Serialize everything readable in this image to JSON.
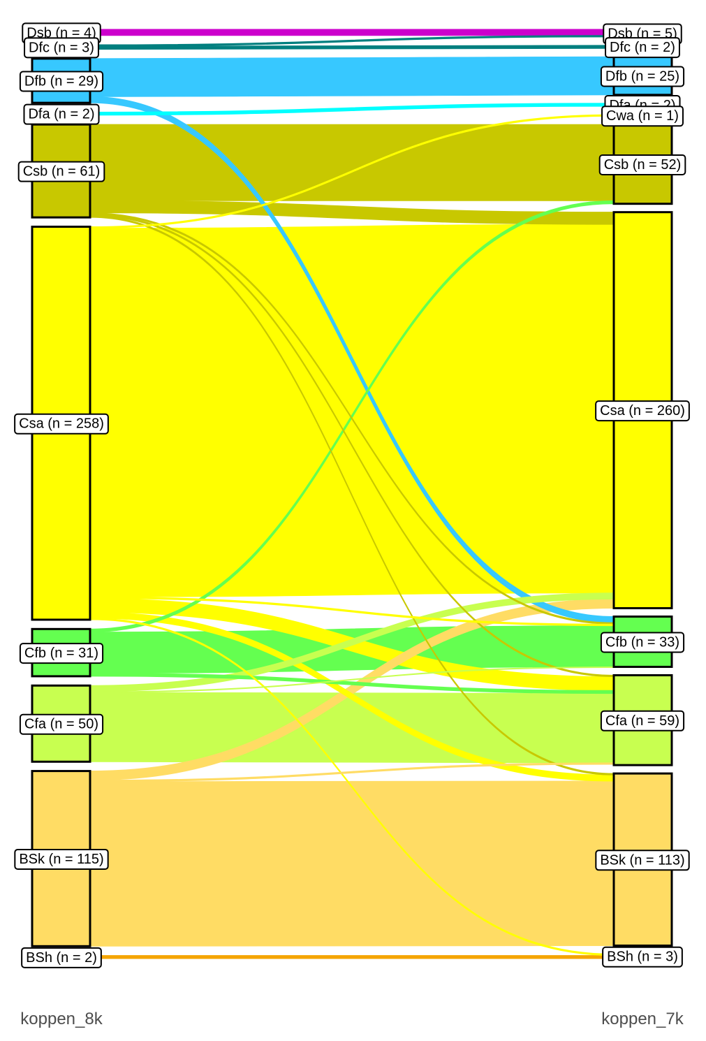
{
  "chart_data": {
    "type": "sankey",
    "axes": [
      {
        "name": "koppen_8k",
        "nodes": [
          {
            "id": "Dsb",
            "label": "Dsb (n = 4)",
            "n": 4,
            "color": "#cc00cc"
          },
          {
            "id": "Dfc",
            "label": "Dfc (n = 3)",
            "n": 3,
            "color": "#007f7f"
          },
          {
            "id": "Dfb",
            "label": "Dfb (n = 29)",
            "n": 29,
            "color": "#37c8ff"
          },
          {
            "id": "Dfa",
            "label": "Dfa (n = 2)",
            "n": 2,
            "color": "#00ffff"
          },
          {
            "id": "Csb",
            "label": "Csb (n = 61)",
            "n": 61,
            "color": "#c8c800"
          },
          {
            "id": "Csa",
            "label": "Csa (n = 258)",
            "n": 258,
            "color": "#ffff00"
          },
          {
            "id": "Cfb",
            "label": "Cfb (n = 31)",
            "n": 31,
            "color": "#64ff50"
          },
          {
            "id": "Cfa",
            "label": "Cfa (n = 50)",
            "n": 50,
            "color": "#c8ff50"
          },
          {
            "id": "BSk",
            "label": "BSk (n = 115)",
            "n": 115,
            "color": "#ffdc64"
          },
          {
            "id": "BSh",
            "label": "BSh (n = 2)",
            "n": 2,
            "color": "#f5a500"
          }
        ]
      },
      {
        "name": "koppen_7k",
        "nodes": [
          {
            "id": "Dsb",
            "label": "Dsb (n = 5)",
            "n": 5,
            "color": "#cc00cc"
          },
          {
            "id": "Dfc",
            "label": "Dfc (n = 2)",
            "n": 2,
            "color": "#007f7f"
          },
          {
            "id": "Dfb",
            "label": "Dfb (n = 25)",
            "n": 25,
            "color": "#37c8ff"
          },
          {
            "id": "Dfa",
            "label": "Dfa (n = 2)",
            "n": 2,
            "color": "#00ffff"
          },
          {
            "id": "Cwa",
            "label": "Cwa (n = 1)",
            "n": 1,
            "color": "#969600"
          },
          {
            "id": "Csb",
            "label": "Csb (n = 52)",
            "n": 52,
            "color": "#c8c800"
          },
          {
            "id": "Csa",
            "label": "Csa (n = 260)",
            "n": 260,
            "color": "#ffff00"
          },
          {
            "id": "Cfb",
            "label": "Cfb (n = 33)",
            "n": 33,
            "color": "#64ff50"
          },
          {
            "id": "Cfa",
            "label": "Cfa (n = 59)",
            "n": 59,
            "color": "#c8ff50"
          },
          {
            "id": "BSk",
            "label": "BSk (n = 113)",
            "n": 113,
            "color": "#ffdc64"
          },
          {
            "id": "BSh",
            "label": "BSh (n = 3)",
            "n": 3,
            "color": "#f5a500"
          }
        ]
      }
    ],
    "flows": [
      {
        "from": "Dsb",
        "to": "Dsb",
        "value": 4
      },
      {
        "from": "Dfc",
        "to": "Dsb",
        "value": 1
      },
      {
        "from": "Dfc",
        "to": "Dfc",
        "value": 2
      },
      {
        "from": "Dfb",
        "to": "Dfb",
        "value": 25
      },
      {
        "from": "Dfb",
        "to": "Cfb",
        "value": 4
      },
      {
        "from": "Dfa",
        "to": "Dfa",
        "value": 2
      },
      {
        "from": "Csb",
        "to": "Csb",
        "value": 50
      },
      {
        "from": "Csb",
        "to": "Csa",
        "value": 8
      },
      {
        "from": "Csb",
        "to": "Cfb",
        "value": 1
      },
      {
        "from": "Csb",
        "to": "Cfa",
        "value": 1
      },
      {
        "from": "Csb",
        "to": "BSk",
        "value": 1
      },
      {
        "from": "Csa",
        "to": "Cwa",
        "value": 1
      },
      {
        "from": "Csa",
        "to": "Csa",
        "value": 242
      },
      {
        "from": "Csa",
        "to": "Cfb",
        "value": 1
      },
      {
        "from": "Csa",
        "to": "Cfa",
        "value": 9
      },
      {
        "from": "Csa",
        "to": "BSk",
        "value": 4
      },
      {
        "from": "Csa",
        "to": "BSh",
        "value": 1
      },
      {
        "from": "Cfb",
        "to": "Csb",
        "value": 2
      },
      {
        "from": "Cfb",
        "to": "Cfb",
        "value": 27
      },
      {
        "from": "Cfb",
        "to": "Cfa",
        "value": 2
      },
      {
        "from": "Cfa",
        "to": "Csa",
        "value": 4
      },
      {
        "from": "Cfa",
        "to": "Cfb",
        "value": 0.5
      },
      {
        "from": "Cfa",
        "to": "Cfa",
        "value": 45.5
      },
      {
        "from": "BSk",
        "to": "Csa",
        "value": 6
      },
      {
        "from": "BSk",
        "to": "Cfa",
        "value": 1
      },
      {
        "from": "BSk",
        "to": "BSk",
        "value": 108
      },
      {
        "from": "BSh",
        "to": "BSh",
        "value": 2
      }
    ]
  }
}
